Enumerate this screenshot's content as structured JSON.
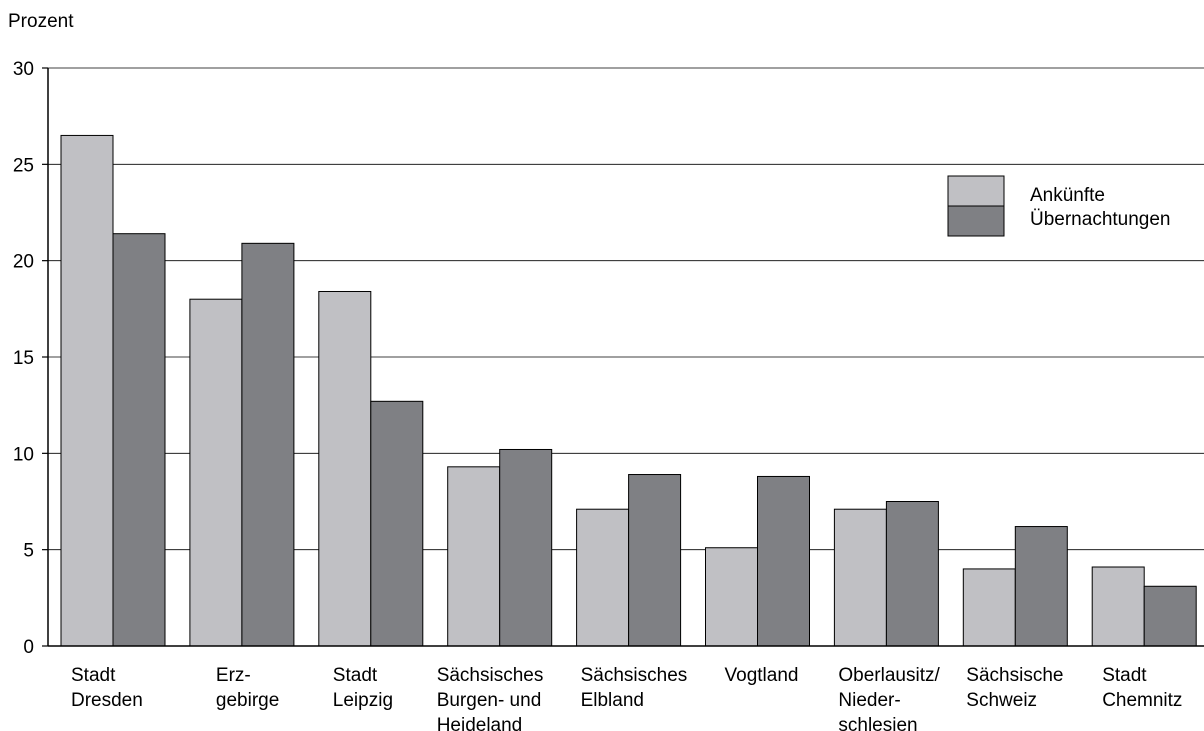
{
  "chart_data": {
    "type": "bar",
    "ylabel": "Prozent",
    "ylim": [
      0,
      30
    ],
    "yticks": [
      0,
      5,
      10,
      15,
      20,
      25,
      30
    ],
    "grid": true,
    "legend_position": "top-right",
    "categories": [
      [
        "Stadt",
        "Dresden"
      ],
      [
        "Erz-",
        "gebirge"
      ],
      [
        "Stadt",
        "Leipzig"
      ],
      [
        "Sächsisches",
        "Burgen- und",
        "Heideland"
      ],
      [
        "Sächsisches",
        "Elbland"
      ],
      [
        "Vogtland"
      ],
      [
        "Oberlausitz/",
        "Nieder-",
        "schlesien"
      ],
      [
        "Sächsische",
        "Schweiz"
      ],
      [
        "Stadt",
        "Chemnitz"
      ]
    ],
    "series": [
      {
        "name": "Ankünfte",
        "color": "#c0c0c4",
        "values": [
          26.5,
          18.0,
          18.4,
          9.3,
          7.1,
          5.1,
          7.1,
          4.0,
          4.1
        ]
      },
      {
        "name": "Übernachtungen",
        "color": "#7f8084",
        "values": [
          21.4,
          20.9,
          12.7,
          10.2,
          8.9,
          8.8,
          7.5,
          6.2,
          3.1
        ]
      }
    ]
  }
}
